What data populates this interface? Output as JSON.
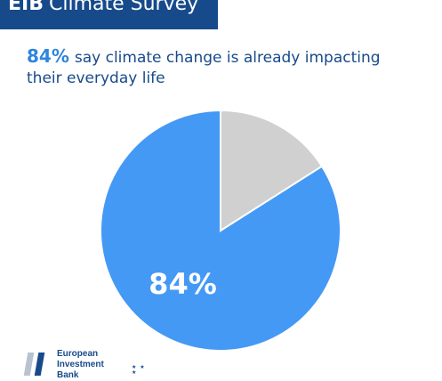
{
  "header": {
    "title_strong": "EIB",
    "title_rest": "Climate Survey"
  },
  "headline": {
    "percent": "84%",
    "text": "say climate change is already impacting their everyday life"
  },
  "chart_data": {
    "type": "pie",
    "title": "",
    "slices": [
      {
        "label": "",
        "value": 84,
        "color": "#4499f5",
        "display": "84%"
      },
      {
        "label": "",
        "value": 16,
        "color": "#d0d0d0",
        "display": ""
      }
    ],
    "legend": "none"
  },
  "logo": {
    "line1": "European",
    "line2": "Investment",
    "line3": "Bank"
  }
}
